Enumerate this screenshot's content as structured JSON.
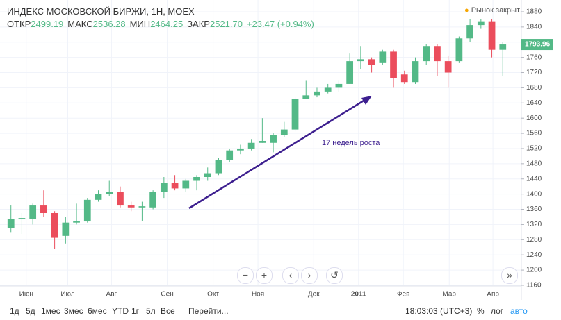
{
  "header": {
    "title": "ИНДЕКС МОСКОВСКОЙ БИРЖИ, 1Н, MOEX",
    "stats": [
      {
        "label": "ОТКР",
        "value": "2499.19"
      },
      {
        "label": "МАКС",
        "value": "2536.28"
      },
      {
        "label": "МИН",
        "value": "2464.25"
      },
      {
        "label": "ЗАКР",
        "value": "2521.70"
      }
    ],
    "change": "+23.47 (+0.94%)",
    "status": "Рынок закрыт"
  },
  "toolbar": {
    "ranges": [
      "1д",
      "5д",
      "1мес",
      "3мес",
      "6мес",
      "YTD",
      "1г",
      "5л",
      "Все"
    ],
    "goto": "Перейти...",
    "time": "18:03:03 (UTC+3)",
    "percent": "%",
    "log": "лог",
    "auto": "авто"
  },
  "chart_data": {
    "type": "candlestick",
    "annotation": "17 недель роста",
    "up_color": "#53b987",
    "down_color": "#eb4d5c",
    "grid": true,
    "open": [
      1310,
      1335,
      1335,
      1370,
      1350,
      1290,
      1325,
      1328,
      1385,
      1400,
      1405,
      1370,
      1365,
      1365,
      1405,
      1430,
      1415,
      1435,
      1445,
      1455,
      1490,
      1515,
      1520,
      1535,
      1535,
      1555,
      1570,
      1650,
      1660,
      1670,
      1680,
      1690,
      1750,
      1755,
      1745,
      1775,
      1715,
      1695,
      1750,
      1790,
      1750,
      1750,
      1810,
      1845,
      1855,
      1780
    ],
    "high": [
      1370,
      1350,
      1375,
      1410,
      1355,
      1340,
      1375,
      1390,
      1410,
      1435,
      1420,
      1380,
      1380,
      1410,
      1445,
      1450,
      1440,
      1450,
      1470,
      1495,
      1520,
      1530,
      1545,
      1600,
      1560,
      1590,
      1655,
      1700,
      1680,
      1690,
      1700,
      1770,
      1790,
      1760,
      1780,
      1780,
      1725,
      1760,
      1795,
      1795,
      1765,
      1815,
      1860,
      1860,
      1860,
      1800
    ],
    "low": [
      1300,
      1295,
      1320,
      1340,
      1255,
      1270,
      1320,
      1325,
      1380,
      1395,
      1365,
      1355,
      1330,
      1360,
      1390,
      1410,
      1405,
      1410,
      1435,
      1450,
      1485,
      1505,
      1515,
      1535,
      1510,
      1550,
      1565,
      1650,
      1655,
      1665,
      1670,
      1690,
      1730,
      1720,
      1740,
      1680,
      1690,
      1690,
      1740,
      1710,
      1680,
      1745,
      1800,
      1835,
      1760,
      1710
    ],
    "close": [
      1335,
      1337,
      1370,
      1350,
      1285,
      1325,
      1328,
      1385,
      1400,
      1405,
      1370,
      1365,
      1368,
      1405,
      1430,
      1415,
      1435,
      1445,
      1455,
      1490,
      1515,
      1520,
      1535,
      1540,
      1555,
      1570,
      1650,
      1660,
      1670,
      1680,
      1690,
      1750,
      1755,
      1740,
      1775,
      1705,
      1695,
      1750,
      1790,
      1750,
      1720,
      1810,
      1845,
      1855,
      1780,
      1793.96
    ],
    "xlim": [
      -1,
      46.7
    ],
    "xticks": [
      {
        "value": 1.4,
        "label": "Июн"
      },
      {
        "value": 5.2,
        "label": "Июл"
      },
      {
        "value": 9.2,
        "label": "Авг"
      },
      {
        "value": 14.3,
        "label": "Сен"
      },
      {
        "value": 18.5,
        "label": "Окт"
      },
      {
        "value": 22.6,
        "label": "Ноя"
      },
      {
        "value": 27.7,
        "label": "Дек"
      },
      {
        "value": 31.8,
        "label": "2011"
      },
      {
        "value": 35.9,
        "label": "Фев"
      },
      {
        "value": 40.1,
        "label": "Мар"
      },
      {
        "value": 44.1,
        "label": "Апр"
      }
    ],
    "ylim": [
      1143.5,
      1911
    ],
    "yticks": [
      1160,
      1200,
      1240,
      1280,
      1320,
      1360,
      1400,
      1440,
      1480,
      1520,
      1560,
      1600,
      1640,
      1680,
      1720,
      1760,
      1800,
      1840,
      1880
    ]
  }
}
